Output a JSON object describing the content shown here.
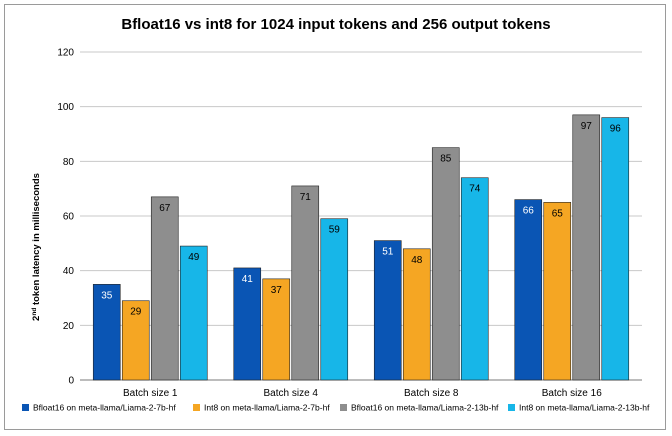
{
  "chart_data": {
    "type": "bar",
    "title": "Bfloat16 vs int8 for 1024 input tokens and 256 output tokens",
    "xlabel": "",
    "ylabel": "2nd token latency in milliseconds",
    "ylim": [
      0,
      120
    ],
    "yticks": [
      0,
      20,
      40,
      60,
      80,
      100,
      120
    ],
    "grid": true,
    "legend_position": "bottom",
    "categories": [
      "Batch size 1",
      "Batch size 4",
      "Batch size 8",
      "Batch size 16"
    ],
    "series": [
      {
        "name": "Bfloat16 on meta-llama/Liama-2-7b-hf",
        "color": "#0a55b4",
        "label_color": "#ffffff",
        "values": [
          35,
          41,
          51,
          66
        ]
      },
      {
        "name": "Int8 on meta-llama/Liama-2-7b-hf",
        "color": "#f5a623",
        "label_color": "#000000",
        "values": [
          29,
          37,
          48,
          65
        ]
      },
      {
        "name": "Bfloat16 on meta-llama/Liama-2-13b-hf",
        "color": "#8e8e8e",
        "label_color": "#000000",
        "values": [
          67,
          71,
          85,
          97
        ]
      },
      {
        "name": "Int8 on meta-llama/Liama-2-13b-hf",
        "color": "#17b6e8",
        "label_color": "#000000",
        "values": [
          49,
          59,
          74,
          96
        ]
      }
    ]
  }
}
